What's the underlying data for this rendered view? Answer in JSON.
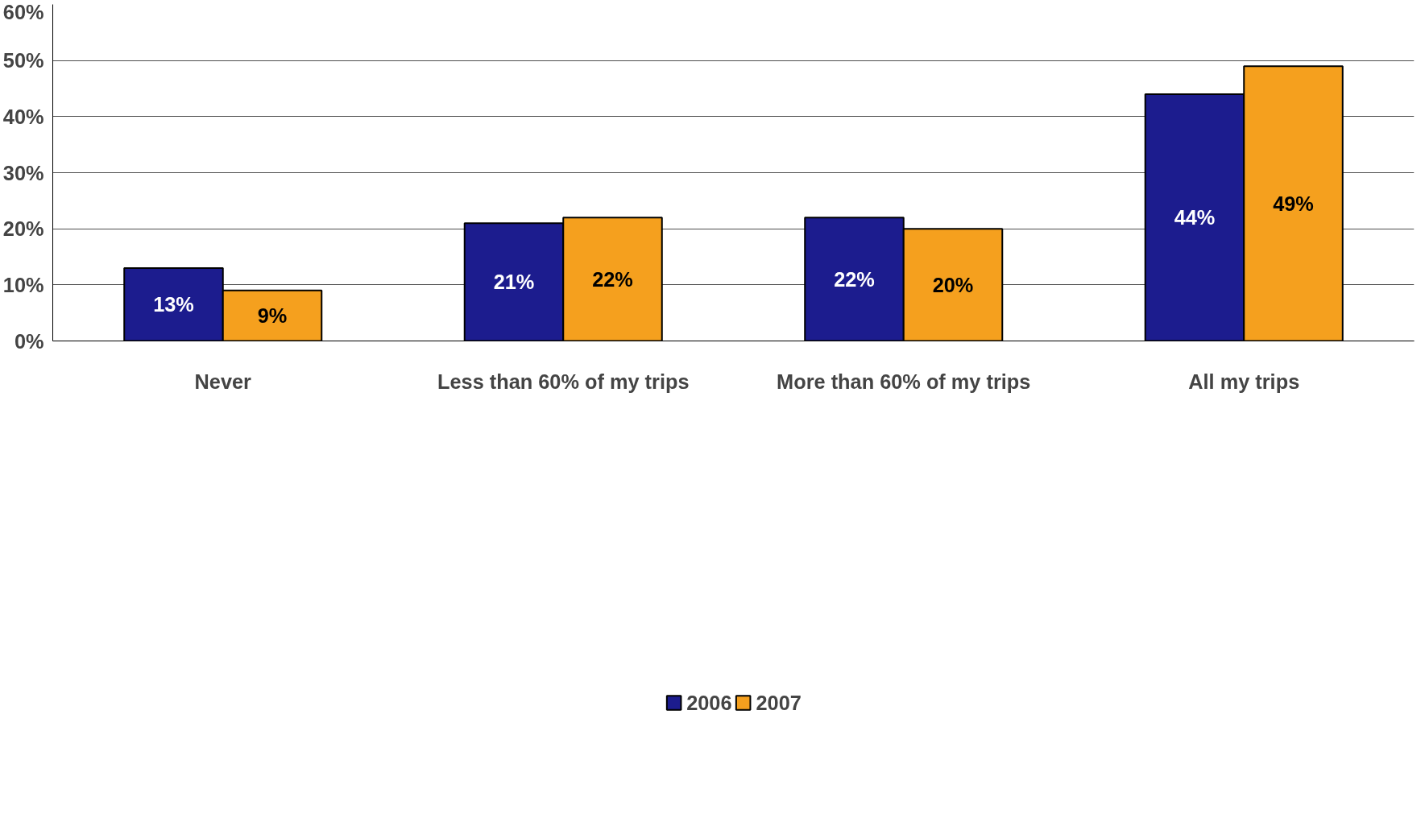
{
  "chart_data": {
    "type": "bar",
    "categories": [
      "Never",
      "Less than 60% of my trips",
      "More than 60% of my trips",
      "All my trips"
    ],
    "series": [
      {
        "name": "2006",
        "color": "#1c1c8e",
        "values": [
          13,
          21,
          22,
          44
        ],
        "value_labels": [
          "13%",
          "21%",
          "22%",
          "44%"
        ]
      },
      {
        "name": "2007",
        "color": "#f5a01e",
        "values": [
          9,
          22,
          20,
          49
        ],
        "value_labels": [
          "9%",
          "22%",
          "20%",
          "49%"
        ]
      }
    ],
    "ylim": [
      0,
      60
    ],
    "yticks": [
      {
        "value": 0,
        "label": "0%"
      },
      {
        "value": 10,
        "label": "10%"
      },
      {
        "value": 20,
        "label": "20%"
      },
      {
        "value": 30,
        "label": "30%"
      },
      {
        "value": 40,
        "label": "40%"
      },
      {
        "value": 50,
        "label": "50%"
      },
      {
        "value": 60,
        "label": "60%"
      }
    ],
    "grid": "y",
    "legend": "bottom"
  }
}
